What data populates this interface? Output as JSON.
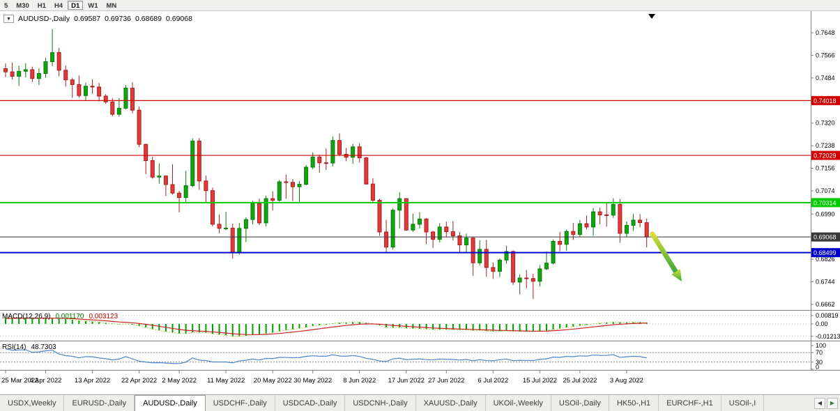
{
  "toolbar": {
    "periods": [
      {
        "label": "5",
        "active": false
      },
      {
        "label": "M30",
        "active": false
      },
      {
        "label": "H1",
        "active": false
      },
      {
        "label": "H4",
        "active": false
      },
      {
        "label": "D1",
        "active": true
      },
      {
        "label": "W1",
        "active": false
      },
      {
        "label": "MN",
        "active": false
      }
    ]
  },
  "icons": {
    "dropdown": "▼",
    "scroll_left": "◀",
    "scroll_right": "▶",
    "shift_marker": "▼"
  },
  "chart_header": {
    "title": "AUDUSD-,Daily",
    "open": "0.69587",
    "high": "0.69736",
    "low": "0.68689",
    "close": "0.69068"
  },
  "colors": {
    "bull": "#11A511",
    "bull_border": "#0B7A0B",
    "bear": "#E03A3A",
    "bear_border": "#A81F1F",
    "level_red": "#D20000",
    "level_green": "#00CC00",
    "level_blue": "#0000CC",
    "price_line": "#383838",
    "macd_hist": "#00A000",
    "macd_dots": "#93C41E",
    "macd_signal": "#CC2222",
    "rsi_line": "#4A86C8",
    "arrow_top": "#D8DE35",
    "arrow_bottom": "#3DA83D"
  },
  "chart_data": {
    "type": "candlestick",
    "symbol": "AUDUSD",
    "timeframe": "Daily",
    "ohlc_current": {
      "open": 0.69587,
      "high": 0.69736,
      "low": 0.68689,
      "close": 0.69068
    },
    "y_ticks": [
      "0.7648",
      "0.7566",
      "0.7484",
      "0.7402",
      "0.7320",
      "0.7238",
      "0.7156",
      "0.7074",
      "0.6990",
      "0.6908",
      "0.6826",
      "0.6744",
      "0.6662"
    ],
    "levels": [
      {
        "price": 0.74018,
        "label": "0.74018",
        "color": "#D20000",
        "width": 1.2
      },
      {
        "price": 0.72029,
        "label": "0.72029",
        "color": "#D20000",
        "width": 1.2
      },
      {
        "price": 0.70314,
        "label": "0.70314",
        "color": "#00CC00",
        "width": 2
      },
      {
        "price": 0.68499,
        "label": "0.68499",
        "color": "#0000CC",
        "width": 2
      },
      {
        "price": 0.69068,
        "label": "0.69068",
        "color": "#383838",
        "width": 1
      }
    ],
    "x_labels": [
      {
        "index": 0,
        "label": "25 Mar 2022"
      },
      {
        "index": 6,
        "label": "4 Apr 2022"
      },
      {
        "index": 13,
        "label": "13 Apr 2022"
      },
      {
        "index": 20,
        "label": "22 Apr 2022"
      },
      {
        "index": 26,
        "label": "2 May 2022"
      },
      {
        "index": 33,
        "label": "11 May 2022"
      },
      {
        "index": 40,
        "label": "20 May 2022"
      },
      {
        "index": 46,
        "label": "30 May 2022"
      },
      {
        "index": 53,
        "label": "8 Jun 2022"
      },
      {
        "index": 60,
        "label": "17 Jun 2022"
      },
      {
        "index": 66,
        "label": "27 Jun 2022"
      },
      {
        "index": 73,
        "label": "6 Jul 2022"
      },
      {
        "index": 80,
        "label": "15 Jul 2022"
      },
      {
        "index": 86,
        "label": "25 Jul 2022"
      },
      {
        "index": 93,
        "label": "3 Aug 2022"
      }
    ],
    "candles": [
      [
        0.7518,
        0.7537,
        0.7487,
        0.7506
      ],
      [
        0.7506,
        0.754,
        0.7478,
        0.749
      ],
      [
        0.749,
        0.7528,
        0.7455,
        0.7508
      ],
      [
        0.7508,
        0.7537,
        0.7486,
        0.7514
      ],
      [
        0.7514,
        0.7525,
        0.7469,
        0.7482
      ],
      [
        0.7482,
        0.7519,
        0.7458,
        0.75
      ],
      [
        0.75,
        0.7557,
        0.7485,
        0.7543
      ],
      [
        0.7543,
        0.7661,
        0.7527,
        0.7576
      ],
      [
        0.7576,
        0.7593,
        0.749,
        0.7512
      ],
      [
        0.7512,
        0.7529,
        0.7452,
        0.7477
      ],
      [
        0.7477,
        0.7485,
        0.7411,
        0.746
      ],
      [
        0.746,
        0.7493,
        0.7413,
        0.742
      ],
      [
        0.742,
        0.7467,
        0.74,
        0.7454
      ],
      [
        0.7454,
        0.7479,
        0.7427,
        0.7451
      ],
      [
        0.7451,
        0.7466,
        0.7398,
        0.7418
      ],
      [
        0.7418,
        0.7425,
        0.739,
        0.7397
      ],
      [
        0.7397,
        0.741,
        0.7345,
        0.7352
      ],
      [
        0.7352,
        0.741,
        0.7343,
        0.7374
      ],
      [
        0.7374,
        0.7458,
        0.737,
        0.7447
      ],
      [
        0.7447,
        0.7468,
        0.7356,
        0.7367
      ],
      [
        0.7367,
        0.738,
        0.7233,
        0.7243
      ],
      [
        0.7243,
        0.7245,
        0.7135,
        0.7184
      ],
      [
        0.7184,
        0.7198,
        0.7118,
        0.7124
      ],
      [
        0.7124,
        0.7174,
        0.71,
        0.7128
      ],
      [
        0.7128,
        0.7131,
        0.7055,
        0.7097
      ],
      [
        0.7097,
        0.7171,
        0.706,
        0.7066
      ],
      [
        0.7066,
        0.7074,
        0.6996,
        0.705
      ],
      [
        0.705,
        0.7147,
        0.7029,
        0.7093
      ],
      [
        0.7093,
        0.7265,
        0.7088,
        0.7255
      ],
      [
        0.7255,
        0.7266,
        0.7078,
        0.711
      ],
      [
        0.711,
        0.713,
        0.7032,
        0.7075
      ],
      [
        0.7075,
        0.7086,
        0.6945,
        0.6953
      ],
      [
        0.6953,
        0.6989,
        0.692,
        0.6938
      ],
      [
        0.6938,
        0.6998,
        0.6932,
        0.6939
      ],
      [
        0.6939,
        0.6955,
        0.6828,
        0.685
      ],
      [
        0.685,
        0.6958,
        0.6842,
        0.6938
      ],
      [
        0.6938,
        0.6978,
        0.6888,
        0.697
      ],
      [
        0.697,
        0.7038,
        0.6952,
        0.7028
      ],
      [
        0.7028,
        0.7046,
        0.695,
        0.6958
      ],
      [
        0.6958,
        0.7057,
        0.6945,
        0.7046
      ],
      [
        0.7046,
        0.7073,
        0.7003,
        0.704
      ],
      [
        0.704,
        0.7114,
        0.7035,
        0.7107
      ],
      [
        0.7107,
        0.7133,
        0.7046,
        0.7105
      ],
      [
        0.7105,
        0.7117,
        0.7037,
        0.7089
      ],
      [
        0.7089,
        0.711,
        0.7034,
        0.7098
      ],
      [
        0.7098,
        0.7168,
        0.7094,
        0.716
      ],
      [
        0.716,
        0.7214,
        0.7153,
        0.7197
      ],
      [
        0.7197,
        0.7205,
        0.714,
        0.7176
      ],
      [
        0.7176,
        0.7228,
        0.715,
        0.7175
      ],
      [
        0.7175,
        0.7272,
        0.7163,
        0.7257
      ],
      [
        0.7257,
        0.7283,
        0.72,
        0.7207
      ],
      [
        0.7207,
        0.723,
        0.7182,
        0.7196
      ],
      [
        0.7196,
        0.7245,
        0.7172,
        0.7234
      ],
      [
        0.7234,
        0.7247,
        0.7177,
        0.7194
      ],
      [
        0.7194,
        0.7197,
        0.7097,
        0.7099
      ],
      [
        0.7099,
        0.712,
        0.7033,
        0.704
      ],
      [
        0.704,
        0.7045,
        0.6911,
        0.6925
      ],
      [
        0.6925,
        0.6969,
        0.685,
        0.687
      ],
      [
        0.687,
        0.701,
        0.6861,
        0.7004
      ],
      [
        0.7004,
        0.7069,
        0.6937,
        0.7046
      ],
      [
        0.7046,
        0.7046,
        0.693,
        0.6932
      ],
      [
        0.6932,
        0.6992,
        0.6925,
        0.6953
      ],
      [
        0.6953,
        0.6997,
        0.6937,
        0.6972
      ],
      [
        0.6972,
        0.6975,
        0.6881,
        0.6925
      ],
      [
        0.6925,
        0.6929,
        0.6867,
        0.6898
      ],
      [
        0.6898,
        0.6957,
        0.6887,
        0.6943
      ],
      [
        0.6943,
        0.6963,
        0.6905,
        0.6926
      ],
      [
        0.6926,
        0.6965,
        0.6894,
        0.6911
      ],
      [
        0.6911,
        0.6925,
        0.6853,
        0.6878
      ],
      [
        0.6878,
        0.6919,
        0.685,
        0.6903
      ],
      [
        0.6903,
        0.6905,
        0.6766,
        0.6813
      ],
      [
        0.6813,
        0.6895,
        0.6803,
        0.6862
      ],
      [
        0.6862,
        0.6896,
        0.6762,
        0.6796
      ],
      [
        0.6796,
        0.6814,
        0.6755,
        0.6782
      ],
      [
        0.6782,
        0.6829,
        0.6761,
        0.6823
      ],
      [
        0.6823,
        0.6875,
        0.681,
        0.6854
      ],
      [
        0.6854,
        0.6858,
        0.6733,
        0.6743
      ],
      [
        0.6743,
        0.6771,
        0.6698,
        0.6758
      ],
      [
        0.6758,
        0.6787,
        0.6721,
        0.6756
      ],
      [
        0.6756,
        0.6773,
        0.6682,
        0.6746
      ],
      [
        0.6746,
        0.6805,
        0.6727,
        0.6791
      ],
      [
        0.6791,
        0.6854,
        0.6786,
        0.6812
      ],
      [
        0.6812,
        0.6898,
        0.6807,
        0.6891
      ],
      [
        0.6891,
        0.6925,
        0.6855,
        0.688
      ],
      [
        0.688,
        0.6934,
        0.6857,
        0.6927
      ],
      [
        0.6927,
        0.6958,
        0.6896,
        0.6916
      ],
      [
        0.6916,
        0.6969,
        0.6906,
        0.6955
      ],
      [
        0.6955,
        0.6985,
        0.6935,
        0.6943
      ],
      [
        0.6943,
        0.7012,
        0.6911,
        0.6998
      ],
      [
        0.6998,
        0.7013,
        0.6953,
        0.6987
      ],
      [
        0.6987,
        0.7033,
        0.6944,
        0.6986
      ],
      [
        0.6986,
        0.7047,
        0.6976,
        0.7025
      ],
      [
        0.7025,
        0.7045,
        0.6886,
        0.692
      ],
      [
        0.692,
        0.6963,
        0.6906,
        0.6949
      ],
      [
        0.6949,
        0.699,
        0.6929,
        0.6968
      ],
      [
        0.6968,
        0.699,
        0.6942,
        0.6959
      ],
      [
        0.69587,
        0.69736,
        0.68689,
        0.69068
      ]
    ],
    "indicators": {
      "macd": {
        "label": "MACD(12,26,9)",
        "fast": 12,
        "slow": 26,
        "signal_period": 9,
        "main_value": "0.001170",
        "signal_value": "0.003123",
        "axis": [
          {
            "v": 0.00819,
            "t": "0.00819"
          },
          {
            "v": 0,
            "t": "0.00"
          },
          {
            "v": -0.01213,
            "t": "-0.01213"
          }
        ]
      },
      "rsi": {
        "label": "RSI(14)",
        "period": 14,
        "value": "48.7303",
        "axis": [
          {
            "v": 100,
            "t": "100"
          },
          {
            "v": 70,
            "t": "70"
          },
          {
            "v": 30,
            "t": "30"
          },
          {
            "v": 0,
            "t": "0"
          }
        ],
        "levels": [
          70,
          30
        ]
      }
    },
    "annotations": [
      {
        "type": "arrow",
        "direction": "down-right",
        "color_top": "#D8DE35",
        "color_bottom": "#3DA83D"
      }
    ]
  },
  "tab_bar": {
    "tabs": [
      {
        "label": "USDX,Weekly",
        "active": false
      },
      {
        "label": "EURUSD-,Daily",
        "active": false
      },
      {
        "label": "AUDUSD-,Daily",
        "active": true
      },
      {
        "label": "USDCHF-,Daily",
        "active": false
      },
      {
        "label": "USDCAD-,Daily",
        "active": false
      },
      {
        "label": "USDCNH-,Daily",
        "active": false
      },
      {
        "label": "XAUUSD-,Daily",
        "active": false
      },
      {
        "label": "UKOil-,Weekly",
        "active": false
      },
      {
        "label": "USOil-,Daily",
        "active": false
      },
      {
        "label": "HK50-,H1",
        "active": false
      },
      {
        "label": "EURCHF-,H1",
        "active": false
      },
      {
        "label": "USOil-,I",
        "active": false
      }
    ]
  }
}
